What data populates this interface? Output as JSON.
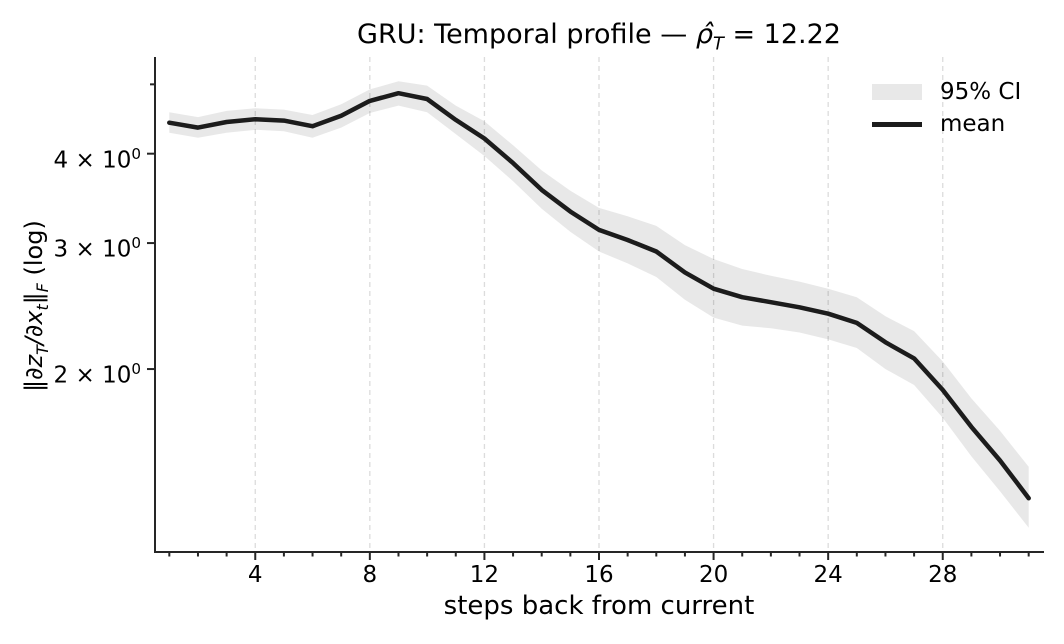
{
  "chart_data": {
    "type": "line",
    "title": "GRU: Temporal profile — ρ̂_T = 12.22",
    "title_parts": {
      "prefix": "GRU: Temporal profile — ",
      "rho_hat": "ρ̂",
      "sub": "T",
      "suffix": " = 12.22"
    },
    "xlabel": "steps back from current",
    "ylabel": "‖∂z_T/∂x_t‖_F (log)",
    "ylabel_segments": [
      {
        "t": "‖∂z",
        "i": true
      },
      {
        "t": "T",
        "i": true,
        "sub": true
      },
      {
        "t": "/∂x",
        "i": true
      },
      {
        "t": "t",
        "i": true,
        "sub": true
      },
      {
        "t": "‖",
        "i": true
      },
      {
        "t": "F",
        "i": true,
        "sub": true
      },
      {
        "t": " (log)",
        "i": false
      }
    ],
    "yscale": "log",
    "xlim": [
      0.5,
      31.5
    ],
    "ylim": [
      1.11,
      5.46
    ],
    "x": [
      1,
      2,
      3,
      4,
      5,
      6,
      7,
      8,
      9,
      10,
      11,
      12,
      13,
      14,
      15,
      16,
      17,
      18,
      19,
      20,
      21,
      22,
      23,
      24,
      25,
      26,
      27,
      28,
      29,
      30,
      31
    ],
    "series": [
      {
        "name": "mean",
        "values": [
          4.42,
          4.35,
          4.43,
          4.47,
          4.45,
          4.37,
          4.52,
          4.74,
          4.86,
          4.77,
          4.46,
          4.2,
          3.88,
          3.56,
          3.32,
          3.13,
          3.03,
          2.92,
          2.73,
          2.59,
          2.52,
          2.48,
          2.44,
          2.39,
          2.32,
          2.18,
          2.07,
          1.87,
          1.66,
          1.49,
          1.32
        ]
      },
      {
        "name": "95% CI upper",
        "values": [
          4.57,
          4.5,
          4.59,
          4.63,
          4.61,
          4.53,
          4.69,
          4.92,
          5.05,
          4.98,
          4.67,
          4.44,
          4.11,
          3.79,
          3.55,
          3.36,
          3.27,
          3.17,
          2.98,
          2.85,
          2.76,
          2.7,
          2.65,
          2.59,
          2.52,
          2.37,
          2.26,
          2.05,
          1.82,
          1.64,
          1.46
        ]
      },
      {
        "name": "95% CI lower",
        "values": [
          4.28,
          4.21,
          4.28,
          4.32,
          4.3,
          4.21,
          4.35,
          4.56,
          4.67,
          4.57,
          4.26,
          3.97,
          3.66,
          3.35,
          3.11,
          2.92,
          2.81,
          2.69,
          2.5,
          2.36,
          2.3,
          2.28,
          2.25,
          2.2,
          2.14,
          2.0,
          1.9,
          1.71,
          1.51,
          1.35,
          1.2
        ]
      }
    ],
    "x_major_ticks": [
      4,
      8,
      12,
      16,
      20,
      24,
      28
    ],
    "x_minor_step": 1,
    "y_ticks": [
      {
        "value": 2,
        "base": "2 × 10",
        "exp": "0"
      },
      {
        "value": 3,
        "base": "3 × 10",
        "exp": "0"
      },
      {
        "value": 4,
        "base": "4 × 10",
        "exp": "0"
      }
    ],
    "y_minor_ticks": [
      5
    ],
    "grid": "vertical-dashed-at-x-majors",
    "legend": {
      "position": "upper right",
      "frame": false,
      "entries": [
        {
          "label": "95% CI",
          "type": "patch"
        },
        {
          "label": "mean",
          "type": "line"
        }
      ]
    },
    "colors": {
      "mean": "#1c1c1c",
      "ci_fill": "#000000",
      "ci_opacity": 0.09,
      "ci_legend_swatch": "#e8e8e8",
      "grid": "#dcdcdc",
      "spine": "#262626",
      "text": "#000000",
      "background": "#ffffff"
    }
  }
}
